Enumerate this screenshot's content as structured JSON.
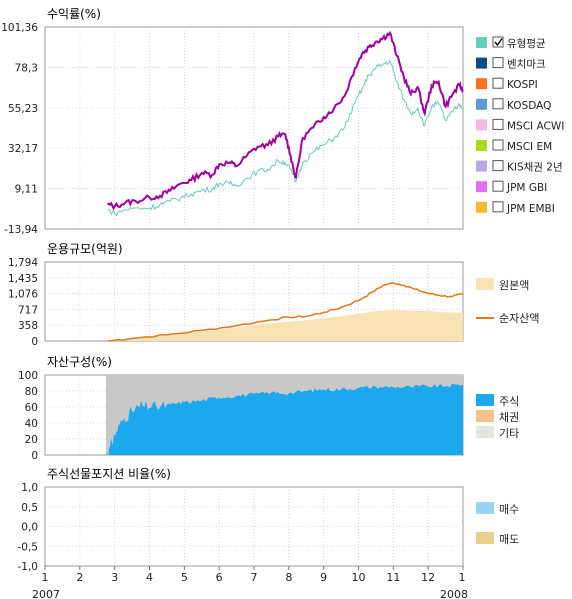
{
  "colors": {
    "fund": "#a000a0",
    "benchmark": "#66ccbb",
    "grey_area": "#c8c8c8",
    "stock": "#1ca8ec",
    "bond": "#f5c28a",
    "other": "#e6e6e0",
    "principal": "#f9e2b2",
    "net_assets": "#dd7a1f",
    "buy": "#9ad2f2",
    "sell": "#e8cf8e"
  },
  "chart_data": [
    {
      "type": "line",
      "title": "수익률(%)",
      "x_ticks": [
        "1",
        "2",
        "3",
        "4",
        "5",
        "6",
        "7",
        "8",
        "9",
        "10",
        "11",
        "12",
        "1"
      ],
      "x_year_labels": [
        "2007",
        "2008"
      ],
      "y_ticks": [
        "101,36",
        "78,3",
        "55,23",
        "32,17",
        "9,11",
        "-13,94"
      ],
      "ylim": [
        -13.94,
        101.36
      ],
      "xlim": [
        1,
        13
      ],
      "series": [
        {
          "name": "유형평균",
          "color": "#a000a0",
          "x": [
            2.8,
            3.0,
            3.3,
            3.6,
            4.0,
            4.3,
            4.6,
            4.9,
            5.2,
            5.5,
            5.8,
            6.0,
            6.3,
            6.5,
            6.8,
            7.1,
            7.4,
            7.7,
            7.9,
            8.05,
            8.2,
            8.4,
            8.7,
            9.0,
            9.3,
            9.6,
            9.9,
            10.1,
            10.3,
            10.5,
            10.7,
            10.9,
            11.1,
            11.3,
            11.5,
            11.7,
            11.9,
            12.1,
            12.3,
            12.5,
            12.7,
            12.9,
            13.0
          ],
          "y": [
            0,
            -1,
            1,
            2,
            4,
            5,
            8,
            12,
            14,
            18,
            17,
            23,
            24,
            22,
            28,
            33,
            34,
            39,
            40,
            28,
            15,
            38,
            44,
            50,
            55,
            62,
            78,
            86,
            90,
            93,
            95,
            98,
            85,
            73,
            63,
            67,
            52,
            68,
            70,
            56,
            63,
            68,
            65
          ]
        },
        {
          "name": "벤치마크",
          "color": "#66ccbb",
          "x": [
            2.8,
            3.0,
            3.3,
            3.6,
            4.0,
            4.3,
            4.6,
            4.9,
            5.2,
            5.5,
            5.8,
            6.0,
            6.3,
            6.5,
            6.8,
            7.1,
            7.4,
            7.7,
            7.9,
            8.05,
            8.2,
            8.4,
            8.7,
            9.0,
            9.3,
            9.6,
            9.9,
            10.1,
            10.3,
            10.5,
            10.7,
            10.9,
            11.1,
            11.3,
            11.5,
            11.7,
            11.9,
            12.1,
            12.3,
            12.5,
            12.7,
            12.9,
            13.0
          ],
          "y": [
            -3,
            -5,
            -3,
            -2,
            -2,
            0,
            2,
            4,
            6,
            8,
            9,
            12,
            12,
            11,
            15,
            19,
            20,
            25,
            24,
            20,
            13,
            24,
            30,
            34,
            38,
            44,
            58,
            66,
            74,
            78,
            80,
            82,
            70,
            60,
            52,
            55,
            45,
            56,
            58,
            48,
            53,
            57,
            55
          ]
        }
      ],
      "legend": [
        {
          "label": "유형평균",
          "color": "#66ccbb",
          "checked": true
        },
        {
          "label": "벤치마크",
          "color": "#0a4a90",
          "checked": false
        },
        {
          "label": "KOSPI",
          "color": "#ff7020",
          "checked": false
        },
        {
          "label": "KOSDAQ",
          "color": "#5b9bd5",
          "checked": false
        },
        {
          "label": "MSCI ACWI",
          "color": "#f5b8e0",
          "checked": false
        },
        {
          "label": "MSCI EM",
          "color": "#a8d820",
          "checked": false
        },
        {
          "label": "KIS채권 2년",
          "color": "#b8a8e8",
          "checked": false
        },
        {
          "label": "JPM GBI",
          "color": "#e070f0",
          "checked": false
        },
        {
          "label": "JPM EMBI",
          "color": "#f8b830",
          "checked": false
        }
      ]
    },
    {
      "type": "area",
      "title": "운용규모(억원)",
      "y_ticks": [
        "1,794",
        "1,435",
        "1,076",
        "717",
        "358",
        "0"
      ],
      "ylim": [
        0,
        1794
      ],
      "xlim": [
        1,
        13
      ],
      "series": [
        {
          "name": "원본액",
          "color": "#f9e2b2",
          "x": [
            2.8,
            3.5,
            4.5,
            5.5,
            6.5,
            7.5,
            8.5,
            9.5,
            10.0,
            10.5,
            11.0,
            11.5,
            12.0,
            12.5,
            13.0
          ],
          "y": [
            0,
            60,
            130,
            220,
            310,
            400,
            470,
            560,
            620,
            680,
            700,
            690,
            680,
            650,
            640
          ]
        },
        {
          "name": "순자산액",
          "color": "#dd7a1f",
          "x": [
            2.8,
            3.5,
            4.5,
            5.5,
            6.5,
            7.5,
            8.0,
            8.5,
            9.0,
            9.5,
            10.0,
            10.4,
            10.7,
            11.0,
            11.3,
            11.6,
            12.0,
            12.3,
            12.6,
            13.0
          ],
          "y": [
            0,
            60,
            140,
            240,
            350,
            480,
            540,
            560,
            650,
            760,
            920,
            1110,
            1260,
            1320,
            1270,
            1180,
            1080,
            1040,
            1010,
            1060
          ]
        }
      ]
    },
    {
      "type": "area",
      "title": "자산구성(%)",
      "y_ticks": [
        "100",
        "80",
        "60",
        "40",
        "20",
        "0"
      ],
      "ylim": [
        0,
        100
      ],
      "xlim": [
        1,
        13
      ],
      "series": [
        {
          "name": "주식",
          "color": "#1ca8ec",
          "x": [
            2.75,
            2.85,
            3.0,
            3.2,
            3.5,
            3.8,
            4.2,
            4.6,
            5.0,
            5.5,
            6.0,
            6.5,
            7.0,
            7.5,
            8.0,
            8.5,
            9.0,
            9.5,
            10.0,
            10.5,
            11.0,
            11.5,
            12.0,
            12.5,
            13.0
          ],
          "y": [
            0,
            8,
            25,
            42,
            55,
            62,
            60,
            63,
            66,
            68,
            72,
            74,
            76,
            78,
            77,
            80,
            82,
            82,
            84,
            85,
            85,
            85,
            86,
            86,
            88
          ]
        },
        {
          "name": "채권",
          "color": "#f5c28a",
          "x": [],
          "y": []
        },
        {
          "name": "기타",
          "color": "#e6e6e0",
          "x": [],
          "y": []
        }
      ]
    },
    {
      "type": "bar",
      "title": "주식선물포지션 비율(%)",
      "y_ticks": [
        "1,0",
        "0,5",
        "0,0",
        "-0,5",
        "-1,0"
      ],
      "ylim": [
        -1.0,
        1.0
      ],
      "xlim": [
        1,
        13
      ],
      "series": [
        {
          "name": "매수",
          "color": "#9ad2f2",
          "x": [],
          "y": []
        },
        {
          "name": "매도",
          "color": "#e8cf8e",
          "x": [],
          "y": []
        }
      ]
    }
  ]
}
